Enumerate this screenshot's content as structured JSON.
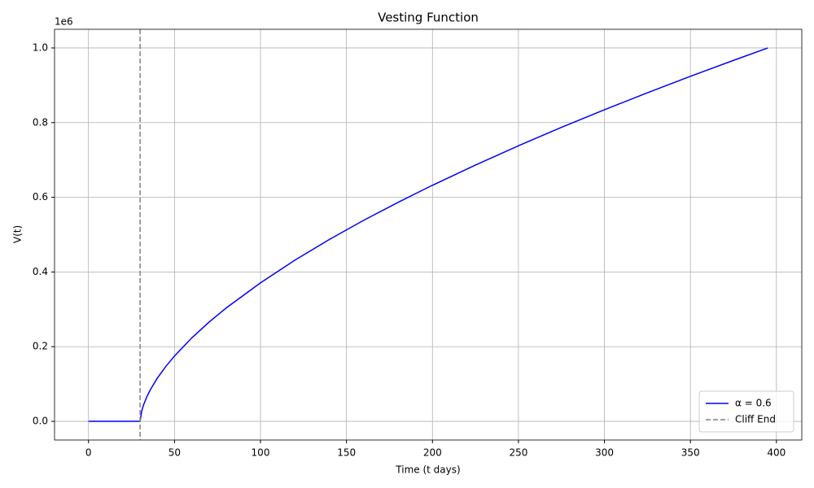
{
  "chart_data": {
    "type": "line",
    "title": "Vesting Function",
    "xlabel": "Time (t days)",
    "ylabel": "V(t)",
    "y_offset_label": "1e6",
    "x": [
      0,
      10,
      20,
      29,
      30,
      31,
      32,
      34,
      36,
      40,
      45,
      50,
      60,
      70,
      80,
      100,
      120,
      140,
      160,
      180,
      200,
      225,
      250,
      275,
      300,
      325,
      350,
      375,
      395
    ],
    "series": [
      {
        "name": "α = 0.6",
        "color": "#0000ff",
        "values": [
          0,
          0,
          0,
          0,
          0,
          0.029,
          0.044,
          0.0667,
          0.085,
          0.1156,
          0.1473,
          0.175,
          0.2233,
          0.2654,
          0.3034,
          0.371,
          0.4317,
          0.487,
          0.5384,
          0.5865,
          0.6323,
          0.6864,
          0.738,
          0.7873,
          0.8345,
          0.88,
          0.924,
          0.9667,
          1.0
        ]
      }
    ],
    "cliff": {
      "name": "Cliff End",
      "x": 30,
      "color": "#808080"
    },
    "xlim": [
      -19.75,
      414.75
    ],
    "ylim": [
      -0.05,
      1.05
    ],
    "xticks": [
      0,
      50,
      100,
      150,
      200,
      250,
      300,
      350,
      400
    ],
    "yticks": [
      {
        "value": 0,
        "label": "0.0"
      },
      {
        "value": 0.2,
        "label": "0.2"
      },
      {
        "value": 0.4,
        "label": "0.4"
      },
      {
        "value": 0.6,
        "label": "0.6"
      },
      {
        "value": 0.8,
        "label": "0.8"
      },
      {
        "value": 1,
        "label": "1.0"
      }
    ],
    "grid": true,
    "legend": "lower right"
  }
}
